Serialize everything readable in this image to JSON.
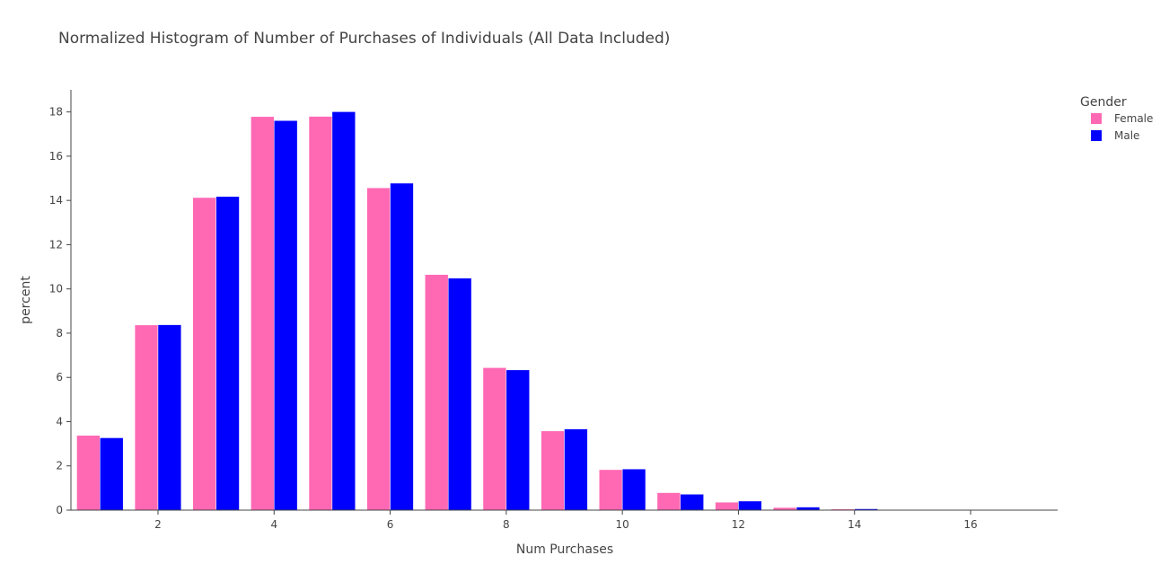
{
  "chart_data": {
    "type": "bar",
    "title": "Normalized Histogram of Number of Purchases of Individuals (All Data Included)",
    "xlabel": "Num Purchases",
    "ylabel": "percent",
    "x": [
      1,
      2,
      3,
      4,
      5,
      6,
      7,
      8,
      9,
      10,
      11,
      12,
      13,
      14,
      15,
      16
    ],
    "series": [
      {
        "name": "Female",
        "color": "#FF69B4",
        "values": [
          3.38,
          8.37,
          14.13,
          17.79,
          17.8,
          14.57,
          10.65,
          6.44,
          3.58,
          1.83,
          0.79,
          0.36,
          0.12,
          0.05,
          0.02,
          0.01
        ]
      },
      {
        "name": "Male",
        "color": "#0000FF",
        "values": [
          3.27,
          8.38,
          14.18,
          17.61,
          18.01,
          14.78,
          10.49,
          6.34,
          3.67,
          1.86,
          0.72,
          0.41,
          0.14,
          0.06,
          0.02,
          0.01
        ]
      }
    ],
    "xlim": [
      0.5,
      17.5
    ],
    "ylim": [
      0,
      19
    ],
    "xticks": [
      2,
      4,
      6,
      8,
      10,
      12,
      14,
      16
    ],
    "yticks": [
      0,
      2,
      4,
      6,
      8,
      10,
      12,
      14,
      16,
      18
    ],
    "legend_title": "Gender",
    "legend_position": "top-right",
    "grid": false
  }
}
